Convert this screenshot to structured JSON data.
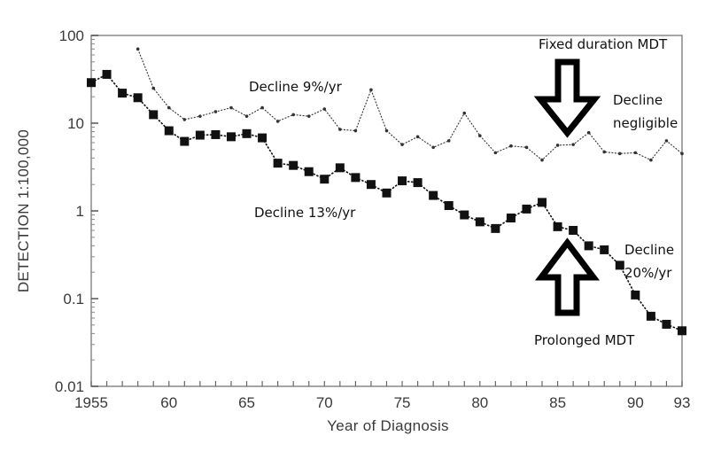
{
  "chart_data": {
    "type": "line",
    "xlabel": "Year of Diagnosis",
    "ylabel": "DETECTION 1:100,000",
    "y_scale": "log",
    "ylim": [
      0.01,
      100
    ],
    "xlim": [
      1955,
      1993
    ],
    "y_ticks": [
      {
        "value": 100,
        "label": "100"
      },
      {
        "value": 10,
        "label": "10"
      },
      {
        "value": 1,
        "label": "1"
      },
      {
        "value": 0.1,
        "label": "0.1"
      },
      {
        "value": 0.01,
        "label": "0.01"
      }
    ],
    "x_ticks": [
      {
        "value": 1955,
        "label": "1955"
      },
      {
        "value": 1960,
        "label": "60"
      },
      {
        "value": 1965,
        "label": "65"
      },
      {
        "value": 1970,
        "label": "70"
      },
      {
        "value": 1975,
        "label": "75"
      },
      {
        "value": 1980,
        "label": "80"
      },
      {
        "value": 1985,
        "label": "85"
      },
      {
        "value": 1990,
        "label": "90"
      },
      {
        "value": 1993,
        "label": "93"
      }
    ],
    "grid": false,
    "series": [
      {
        "marker": "square",
        "color": "#111111",
        "x": [
          1955,
          1956,
          1957,
          1958,
          1959,
          1960,
          1961,
          1962,
          1963,
          1964,
          1965,
          1966,
          1967,
          1968,
          1969,
          1970,
          1971,
          1972,
          1973,
          1974,
          1975,
          1976,
          1977,
          1978,
          1979,
          1980,
          1981,
          1982,
          1983,
          1984,
          1985,
          1986,
          1987,
          1988,
          1989,
          1990,
          1991,
          1992,
          1993
        ],
        "y": [
          29,
          36,
          22,
          19.5,
          12.5,
          8.2,
          6.2,
          7.3,
          7.4,
          7,
          7.6,
          6.8,
          3.5,
          3.3,
          2.8,
          2.3,
          3.1,
          2.4,
          2,
          1.6,
          2.2,
          2.1,
          1.5,
          1.15,
          0.9,
          0.75,
          0.63,
          0.83,
          1.05,
          1.25,
          0.66,
          0.6,
          0.4,
          0.36,
          0.24,
          0.11,
          0.063,
          0.051,
          0.043
        ]
      },
      {
        "marker": "dot",
        "color": "#333333",
        "x": [
          1958,
          1959,
          1960,
          1961,
          1962,
          1963,
          1964,
          1965,
          1966,
          1967,
          1968,
          1969,
          1970,
          1971,
          1972,
          1973,
          1974,
          1975,
          1976,
          1977,
          1978,
          1979,
          1980,
          1981,
          1982,
          1983,
          1984,
          1985,
          1986,
          1987,
          1988,
          1989,
          1990,
          1991,
          1992,
          1993
        ],
        "y": [
          70,
          25,
          15,
          11,
          12,
          13.5,
          15,
          12,
          15,
          10.5,
          12.5,
          12,
          14.5,
          8.5,
          8.2,
          24,
          8.2,
          5.7,
          7,
          5.3,
          6.3,
          13,
          7.2,
          4.6,
          5.5,
          5.3,
          3.8,
          5.6,
          5.7,
          7.8,
          4.7,
          4.5,
          4.6,
          3.8,
          6.3,
          4.5
        ]
      }
    ],
    "annotations": [
      {
        "id": "decline-9",
        "text": "Decline 9%/yr"
      },
      {
        "id": "decline-13",
        "text": "Decline 13%/yr"
      },
      {
        "id": "fixed-mdt",
        "text": "Fixed duration MDT"
      },
      {
        "id": "decline-negligible",
        "lines": [
          "Decline",
          "negligible"
        ]
      },
      {
        "id": "decline-20",
        "lines": [
          "Decline",
          "20%/yr"
        ]
      },
      {
        "id": "prolonged-mdt",
        "text": "Prolonged MDT"
      }
    ]
  }
}
